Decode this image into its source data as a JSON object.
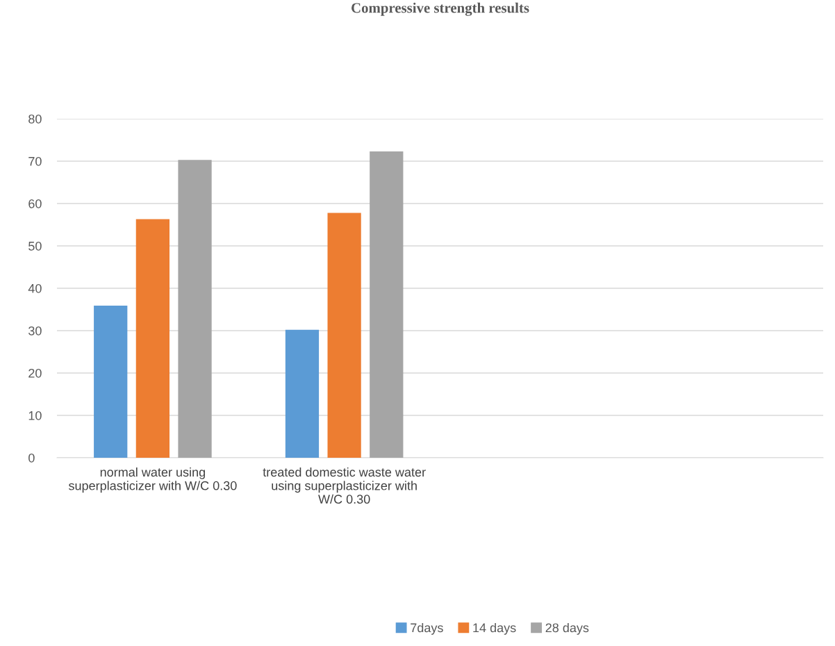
{
  "chart_data": {
    "type": "bar",
    "title": "Compressive strength results",
    "categories": [
      "normal water using superplasticizer with W/C 0.30",
      "treated domestic waste water using superplasticizer with W/C 0.30",
      null,
      null
    ],
    "series": [
      {
        "name": "7days",
        "color": "#5b9bd5",
        "values": [
          35.9,
          30.2,
          null,
          null
        ]
      },
      {
        "name": "14 days",
        "color": "#ed7d31",
        "values": [
          56.3,
          57.8,
          null,
          null
        ]
      },
      {
        "name": "28 days",
        "color": "#a5a5a5",
        "values": [
          70.3,
          72.3,
          null,
          null
        ]
      }
    ],
    "ylim": [
      0,
      80
    ],
    "yticks": [
      0,
      10,
      20,
      30,
      40,
      50,
      60,
      70,
      80
    ],
    "grid": "y",
    "legend": "bottom"
  }
}
